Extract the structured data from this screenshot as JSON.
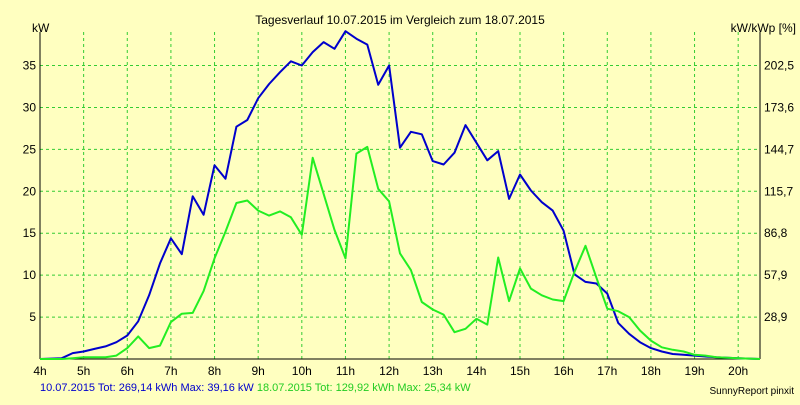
{
  "colors": {
    "background": "#ffffc0",
    "grid": "#33cc33",
    "series1": "#0000cc",
    "series2": "#22ee22"
  },
  "footer": {
    "series1_summary": "10.07.2015 Tot: 269,14 kWh Max: 39,16 kW",
    "series2_summary": "18.07.2015 Tot: 129,92 kWh Max: 25,34 kW",
    "credit": "SunnyReport pinxit"
  },
  "chart_data": {
    "type": "line",
    "title": "Tagesverlauf 10.07.2015 im Vergleich zum 18.07.2015",
    "ylabel": "kW",
    "y2label": "kW/kWp [%]",
    "xlim": [
      4,
      20.5
    ],
    "ylim": [
      0,
      39
    ],
    "x_ticks": [
      "4h",
      "5h",
      "6h",
      "7h",
      "8h",
      "9h",
      "10h",
      "11h",
      "12h",
      "13h",
      "14h",
      "15h",
      "16h",
      "17h",
      "18h",
      "19h",
      "20h"
    ],
    "y_ticks": [
      5,
      10,
      15,
      20,
      25,
      30,
      35
    ],
    "y2_ticks": [
      "28,9",
      "57,9",
      "86,8",
      "115,7",
      "144,7",
      "173,6",
      "202,5"
    ],
    "grid": true,
    "series": [
      {
        "name": "10.07.2015",
        "x": [
          4,
          4.5,
          4.75,
          5,
          5.25,
          5.5,
          5.75,
          6,
          6.25,
          6.5,
          6.75,
          7,
          7.25,
          7.5,
          7.75,
          8,
          8.25,
          8.5,
          8.75,
          9,
          9.25,
          9.5,
          9.75,
          10,
          10.25,
          10.5,
          10.75,
          11,
          11.25,
          11.5,
          11.75,
          12,
          12.25,
          12.5,
          12.75,
          13,
          13.25,
          13.5,
          13.75,
          14,
          14.25,
          14.5,
          14.75,
          15,
          15.25,
          15.5,
          15.75,
          16,
          16.25,
          16.5,
          16.75,
          17,
          17.25,
          17.5,
          17.75,
          18,
          18.25,
          18.5,
          18.75,
          19,
          19.25,
          19.5,
          19.75,
          20,
          20.25,
          20.5
        ],
        "values": [
          0,
          0.1,
          0.7,
          0.9,
          1.2,
          1.5,
          2,
          2.8,
          4.5,
          7.6,
          11.4,
          14.4,
          12.5,
          19.4,
          17.2,
          23.1,
          21.5,
          27.7,
          28.5,
          31.1,
          32.8,
          34.2,
          35.5,
          35,
          36.6,
          37.8,
          37,
          39.1,
          38.2,
          37.5,
          32.7,
          35,
          25.2,
          27.1,
          26.8,
          23.6,
          23.2,
          24.6,
          27.9,
          25.8,
          23.7,
          24.8,
          19.1,
          22,
          20.1,
          18.7,
          17.7,
          15.3,
          10.1,
          9.2,
          9,
          7.8,
          4.3,
          3,
          2,
          1.3,
          0.9,
          0.6,
          0.5,
          0.4,
          0.3,
          0.2,
          0.15,
          0.1,
          0.05,
          0
        ]
      },
      {
        "name": "18.07.2015",
        "x": [
          4,
          4.5,
          4.75,
          5,
          5.25,
          5.5,
          5.75,
          6,
          6.25,
          6.5,
          6.75,
          7,
          7.25,
          7.5,
          7.75,
          8,
          8.25,
          8.5,
          8.75,
          9,
          9.25,
          9.5,
          9.75,
          10,
          10.25,
          10.5,
          10.75,
          11,
          11.25,
          11.5,
          11.75,
          12,
          12.25,
          12.5,
          12.75,
          13,
          13.25,
          13.5,
          13.75,
          14,
          14.25,
          14.5,
          14.75,
          15,
          15.25,
          15.5,
          15.75,
          16,
          16.25,
          16.5,
          16.75,
          17,
          17.25,
          17.5,
          17.75,
          18,
          18.25,
          18.5,
          18.75,
          19,
          19.25,
          19.5,
          19.75,
          20,
          20.25,
          20.5
        ],
        "values": [
          0,
          0,
          0.1,
          0.2,
          0.2,
          0.2,
          0.4,
          1.3,
          2.7,
          1.3,
          1.6,
          4.4,
          5.4,
          5.5,
          8.1,
          12,
          15.2,
          18.6,
          18.9,
          17.7,
          17.1,
          17.6,
          16.9,
          14.8,
          24,
          19.7,
          15.4,
          12,
          24.5,
          25.3,
          20.3,
          18.8,
          12.6,
          10.6,
          6.8,
          5.9,
          5.3,
          3.2,
          3.6,
          4.8,
          4.1,
          12.1,
          6.9,
          10.8,
          8.4,
          7.6,
          7.1,
          6.9,
          10.4,
          13.5,
          9.7,
          6,
          5.7,
          5,
          3.4,
          2.2,
          1.4,
          1.1,
          0.9,
          0.5,
          0.4,
          0.2,
          0.15,
          0.1,
          0.05,
          0
        ]
      }
    ]
  }
}
